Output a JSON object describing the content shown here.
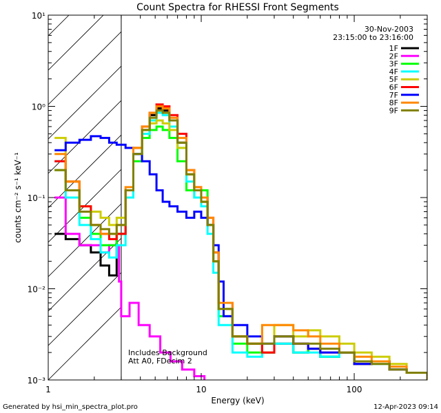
{
  "chart_data": {
    "type": "line",
    "title": "Count Spectra for RHESSI Front Segments",
    "xlabel": "Energy (keV)",
    "ylabel": "counts cm⁻² s⁻¹ keV⁻¹",
    "xscale": "log",
    "yscale": "log",
    "xlim": [
      1,
      300
    ],
    "ylim": [
      0.001,
      10
    ],
    "x_ticks": [
      "1",
      "10",
      "100"
    ],
    "y_ticks": [
      "10⁻³",
      "10⁻²",
      "10⁻¹",
      "10⁰",
      "10¹"
    ],
    "shaded_region": [
      1,
      3
    ],
    "date": "30-Nov-2003",
    "time_range": "23:15:00 to 23:16:00",
    "annotations": [
      "Includes Background",
      "Att A0, FDecim 2"
    ],
    "footer_left": "Generated by hsi_min_spectra_plot.pro",
    "footer_right": "12-Apr-2023 09:14",
    "series": [
      {
        "name": "1F",
        "color": "#000000",
        "points": [
          [
            1.1,
            0.04
          ],
          [
            1.3,
            0.035
          ],
          [
            1.6,
            0.03
          ],
          [
            1.9,
            0.025
          ],
          [
            2.2,
            0.018
          ],
          [
            2.5,
            0.014
          ],
          [
            2.8,
            0.04
          ],
          [
            3.2,
            0.1
          ],
          [
            3.6,
            0.3
          ],
          [
            4.1,
            0.55
          ],
          [
            4.6,
            0.8
          ],
          [
            5.1,
            0.95
          ],
          [
            5.6,
            0.9
          ],
          [
            6.2,
            0.7
          ],
          [
            7.0,
            0.4
          ],
          [
            8.0,
            0.18
          ],
          [
            9.0,
            0.12
          ],
          [
            10.0,
            0.09
          ],
          [
            11.0,
            0.05
          ],
          [
            12.0,
            0.02
          ],
          [
            13.0,
            0.006
          ],
          [
            16,
            0.003
          ],
          [
            20,
            0.0025
          ],
          [
            25,
            0.002
          ],
          [
            30,
            0.0025
          ],
          [
            40,
            0.002
          ],
          [
            50,
            0.0022
          ],
          [
            60,
            0.0018
          ],
          [
            80,
            0.002
          ],
          [
            100,
            0.0015
          ],
          [
            130,
            0.0016
          ],
          [
            170,
            0.0013
          ],
          [
            220,
            0.0012
          ],
          [
            300,
            0.001
          ]
        ]
      },
      {
        "name": "2F",
        "color": "#ff00ff",
        "points": [
          [
            1.1,
            0.1
          ],
          [
            1.3,
            0.04
          ],
          [
            1.6,
            0.03
          ],
          [
            1.9,
            0.03
          ],
          [
            2.2,
            0.025
          ],
          [
            2.5,
            0.03
          ],
          [
            2.9,
            0.012
          ],
          [
            3.0,
            0.005
          ],
          [
            3.4,
            0.007
          ],
          [
            3.9,
            0.004
          ],
          [
            4.6,
            0.003
          ],
          [
            5.4,
            0.002
          ],
          [
            6.3,
            0.0016
          ],
          [
            7.5,
            0.0013
          ],
          [
            9.0,
            0.0011
          ],
          [
            10.5,
            0.001
          ]
        ]
      },
      {
        "name": "3F",
        "color": "#00ff00",
        "points": [
          [
            1.1,
            0.2
          ],
          [
            1.3,
            0.12
          ],
          [
            1.6,
            0.06
          ],
          [
            1.9,
            0.04
          ],
          [
            2.2,
            0.03
          ],
          [
            2.5,
            0.03
          ],
          [
            2.8,
            0.04
          ],
          [
            3.2,
            0.1
          ],
          [
            3.6,
            0.25
          ],
          [
            4.1,
            0.45
          ],
          [
            4.6,
            0.55
          ],
          [
            5.1,
            0.6
          ],
          [
            5.6,
            0.55
          ],
          [
            6.2,
            0.45
          ],
          [
            7.0,
            0.25
          ],
          [
            8.0,
            0.12
          ],
          [
            9.0,
            0.1
          ],
          [
            10.0,
            0.12
          ],
          [
            11.0,
            0.05
          ],
          [
            12.0,
            0.02
          ],
          [
            13.0,
            0.005
          ],
          [
            16,
            0.0025
          ],
          [
            20,
            0.002
          ],
          [
            25,
            0.002
          ],
          [
            30,
            0.003
          ],
          [
            40,
            0.002
          ],
          [
            50,
            0.0022
          ],
          [
            60,
            0.0018
          ],
          [
            80,
            0.002
          ],
          [
            100,
            0.0015
          ],
          [
            130,
            0.0016
          ],
          [
            170,
            0.0013
          ],
          [
            220,
            0.0012
          ],
          [
            300,
            0.001
          ]
        ]
      },
      {
        "name": "4F",
        "color": "#00ffff",
        "points": [
          [
            1.1,
            0.25
          ],
          [
            1.3,
            0.1
          ],
          [
            1.6,
            0.05
          ],
          [
            1.9,
            0.035
          ],
          [
            2.2,
            0.025
          ],
          [
            2.5,
            0.022
          ],
          [
            2.8,
            0.03
          ],
          [
            3.2,
            0.1
          ],
          [
            3.6,
            0.3
          ],
          [
            4.1,
            0.5
          ],
          [
            4.6,
            0.7
          ],
          [
            5.1,
            0.85
          ],
          [
            5.6,
            0.8
          ],
          [
            6.2,
            0.6
          ],
          [
            7.0,
            0.35
          ],
          [
            8.0,
            0.15
          ],
          [
            9.0,
            0.1
          ],
          [
            10.0,
            0.08
          ],
          [
            11.0,
            0.04
          ],
          [
            12.0,
            0.015
          ],
          [
            13.0,
            0.004
          ],
          [
            16,
            0.002
          ],
          [
            20,
            0.0018
          ],
          [
            25,
            0.002
          ],
          [
            30,
            0.0025
          ],
          [
            40,
            0.002
          ],
          [
            50,
            0.002
          ],
          [
            60,
            0.0018
          ],
          [
            80,
            0.002
          ],
          [
            100,
            0.0015
          ],
          [
            130,
            0.0015
          ],
          [
            170,
            0.0013
          ],
          [
            220,
            0.0012
          ],
          [
            300,
            0.001
          ]
        ]
      },
      {
        "name": "5F",
        "color": "#cccc00",
        "points": [
          [
            1.1,
            0.45
          ],
          [
            1.3,
            0.15
          ],
          [
            1.6,
            0.08
          ],
          [
            1.9,
            0.07
          ],
          [
            2.2,
            0.06
          ],
          [
            2.5,
            0.05
          ],
          [
            2.8,
            0.06
          ],
          [
            3.2,
            0.12
          ],
          [
            3.6,
            0.35
          ],
          [
            4.1,
            0.55
          ],
          [
            4.6,
            0.65
          ],
          [
            5.1,
            0.7
          ],
          [
            5.6,
            0.65
          ],
          [
            6.2,
            0.55
          ],
          [
            7.0,
            0.35
          ],
          [
            8.0,
            0.18
          ],
          [
            9.0,
            0.12
          ],
          [
            10.0,
            0.09
          ],
          [
            11.0,
            0.05
          ],
          [
            12.0,
            0.02
          ],
          [
            13.0,
            0.006
          ],
          [
            16,
            0.003
          ],
          [
            20,
            0.0025
          ],
          [
            25,
            0.002
          ],
          [
            30,
            0.004
          ],
          [
            40,
            0.003
          ],
          [
            50,
            0.0035
          ],
          [
            60,
            0.003
          ],
          [
            80,
            0.0025
          ],
          [
            100,
            0.002
          ],
          [
            130,
            0.0018
          ],
          [
            170,
            0.0015
          ],
          [
            220,
            0.0012
          ],
          [
            300,
            0.001
          ]
        ]
      },
      {
        "name": "6F",
        "color": "#ff0000",
        "points": [
          [
            1.1,
            0.25
          ],
          [
            1.3,
            0.15
          ],
          [
            1.6,
            0.08
          ],
          [
            1.9,
            0.05
          ],
          [
            2.2,
            0.04
          ],
          [
            2.5,
            0.035
          ],
          [
            2.8,
            0.04
          ],
          [
            3.2,
            0.12
          ],
          [
            3.6,
            0.35
          ],
          [
            4.1,
            0.6
          ],
          [
            4.6,
            0.85
          ],
          [
            5.1,
            1.05
          ],
          [
            5.6,
            1.0
          ],
          [
            6.2,
            0.8
          ],
          [
            7.0,
            0.5
          ],
          [
            8.0,
            0.2
          ],
          [
            9.0,
            0.13
          ],
          [
            10.0,
            0.1
          ],
          [
            11.0,
            0.06
          ],
          [
            12.0,
            0.025
          ],
          [
            13.0,
            0.007
          ],
          [
            16,
            0.003
          ],
          [
            20,
            0.0025
          ],
          [
            25,
            0.002
          ],
          [
            30,
            0.003
          ],
          [
            40,
            0.0025
          ],
          [
            50,
            0.0022
          ],
          [
            60,
            0.002
          ],
          [
            80,
            0.002
          ],
          [
            100,
            0.0015
          ],
          [
            130,
            0.0016
          ],
          [
            170,
            0.0013
          ],
          [
            220,
            0.0012
          ],
          [
            300,
            0.001
          ]
        ]
      },
      {
        "name": "7F",
        "color": "#0000ff",
        "points": [
          [
            1.1,
            0.33
          ],
          [
            1.3,
            0.4
          ],
          [
            1.6,
            0.43
          ],
          [
            1.9,
            0.47
          ],
          [
            2.2,
            0.45
          ],
          [
            2.5,
            0.4
          ],
          [
            2.8,
            0.38
          ],
          [
            3.2,
            0.35
          ],
          [
            3.6,
            0.3
          ],
          [
            4.1,
            0.25
          ],
          [
            4.6,
            0.18
          ],
          [
            5.1,
            0.12
          ],
          [
            5.6,
            0.09
          ],
          [
            6.2,
            0.08
          ],
          [
            7.0,
            0.07
          ],
          [
            8.0,
            0.06
          ],
          [
            9.0,
            0.07
          ],
          [
            10.0,
            0.06
          ],
          [
            11.0,
            0.05
          ],
          [
            12.0,
            0.03
          ],
          [
            13.0,
            0.012
          ],
          [
            14.0,
            0.005
          ],
          [
            16,
            0.004
          ],
          [
            20,
            0.003
          ],
          [
            25,
            0.0025
          ],
          [
            30,
            0.003
          ],
          [
            40,
            0.0025
          ],
          [
            50,
            0.0022
          ],
          [
            60,
            0.002
          ],
          [
            80,
            0.002
          ],
          [
            100,
            0.0015
          ],
          [
            130,
            0.0016
          ],
          [
            170,
            0.0013
          ],
          [
            220,
            0.0012
          ],
          [
            300,
            0.001
          ]
        ]
      },
      {
        "name": "8F",
        "color": "#ff8800",
        "points": [
          [
            1.1,
            0.3
          ],
          [
            1.3,
            0.15
          ],
          [
            1.6,
            0.07
          ],
          [
            1.9,
            0.05
          ],
          [
            2.2,
            0.04
          ],
          [
            2.5,
            0.04
          ],
          [
            2.8,
            0.05
          ],
          [
            3.2,
            0.13
          ],
          [
            3.6,
            0.35
          ],
          [
            4.1,
            0.6
          ],
          [
            4.6,
            0.85
          ],
          [
            5.1,
            1.0
          ],
          [
            5.6,
            0.95
          ],
          [
            6.2,
            0.75
          ],
          [
            7.0,
            0.45
          ],
          [
            8.0,
            0.2
          ],
          [
            9.0,
            0.13
          ],
          [
            10.0,
            0.1
          ],
          [
            11.0,
            0.06
          ],
          [
            12.0,
            0.025
          ],
          [
            13.0,
            0.007
          ],
          [
            16,
            0.003
          ],
          [
            20,
            0.0025
          ],
          [
            25,
            0.004
          ],
          [
            30,
            0.004
          ],
          [
            40,
            0.0035
          ],
          [
            50,
            0.003
          ],
          [
            60,
            0.0025
          ],
          [
            80,
            0.002
          ],
          [
            100,
            0.0018
          ],
          [
            130,
            0.0016
          ],
          [
            170,
            0.0014
          ],
          [
            220,
            0.0012
          ],
          [
            300,
            0.001
          ]
        ]
      },
      {
        "name": "9F",
        "color": "#808000",
        "points": [
          [
            1.1,
            0.2
          ],
          [
            1.3,
            0.12
          ],
          [
            1.6,
            0.07
          ],
          [
            1.9,
            0.05
          ],
          [
            2.2,
            0.045
          ],
          [
            2.5,
            0.04
          ],
          [
            2.8,
            0.05
          ],
          [
            3.2,
            0.12
          ],
          [
            3.6,
            0.3
          ],
          [
            4.1,
            0.55
          ],
          [
            4.6,
            0.75
          ],
          [
            5.1,
            0.9
          ],
          [
            5.6,
            0.85
          ],
          [
            6.2,
            0.7
          ],
          [
            7.0,
            0.4
          ],
          [
            8.0,
            0.18
          ],
          [
            9.0,
            0.12
          ],
          [
            10.0,
            0.09
          ],
          [
            11.0,
            0.05
          ],
          [
            12.0,
            0.02
          ],
          [
            13.0,
            0.006
          ],
          [
            16,
            0.003
          ],
          [
            20,
            0.0025
          ],
          [
            25,
            0.0025
          ],
          [
            30,
            0.003
          ],
          [
            40,
            0.0025
          ],
          [
            50,
            0.0025
          ],
          [
            60,
            0.0022
          ],
          [
            80,
            0.002
          ],
          [
            100,
            0.0016
          ],
          [
            130,
            0.0015
          ],
          [
            170,
            0.0013
          ],
          [
            220,
            0.0012
          ],
          [
            300,
            0.001
          ]
        ]
      }
    ]
  }
}
